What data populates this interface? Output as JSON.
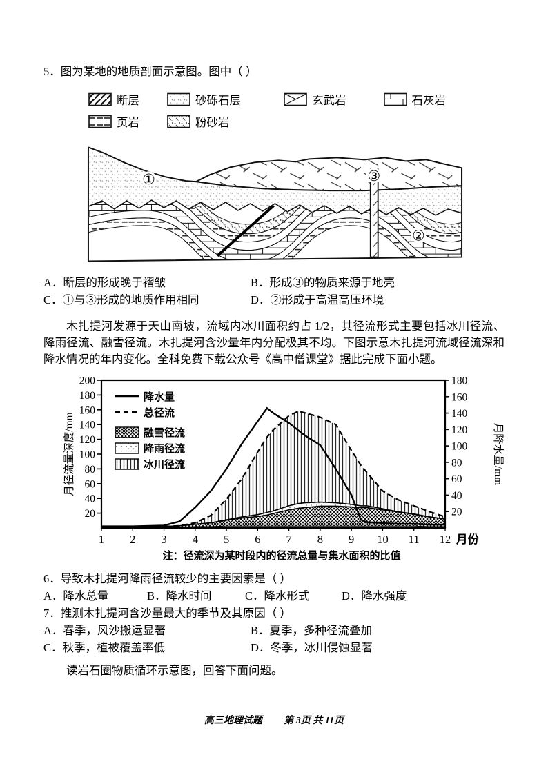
{
  "q5": {
    "text": "5．图为某地的地质剖面示意图。图中（  ）",
    "legend": [
      {
        "label": "断层"
      },
      {
        "label": "砂砾石层"
      },
      {
        "label": "玄武岩"
      },
      {
        "label": "石灰岩"
      },
      {
        "label": "页岩"
      },
      {
        "label": "粉砂岩"
      }
    ],
    "diagram": {
      "label_1": "①",
      "label_2": "②",
      "label_3": "③"
    },
    "options": [
      "A．断层的形成晚于褶皱",
      "B．形成③的物质来源于地壳",
      "C．①与③形成的地质作用相同",
      "D．②形成于高温高压环境"
    ]
  },
  "passage": "木扎提河发源于天山南坡，流域内冰川面积约占 1/2，其径流形式主要包括冰川径流、降雨径流、融雪径流。木扎提河含沙量年内分配极其不均。下图示意木扎提河流域径流深和降水情况的年内变化。全科免费下载公众号《高中僧课堂》据此完成下面小题。",
  "chart_data": {
    "type": "combo-line-stacked-area",
    "x": [
      1,
      2,
      3,
      3.5,
      4,
      4.5,
      5,
      5.5,
      6,
      6.3,
      6.5,
      7,
      7.3,
      7.5,
      8,
      8.5,
      9,
      9.3,
      9.5,
      10,
      10.5,
      11,
      11.5,
      12
    ],
    "series": [
      {
        "name": "降水量",
        "axis": "right",
        "style": "solid-line",
        "values": [
          2,
          2,
          3,
          8,
          25,
          45,
          72,
          103,
          130,
          146,
          140,
          128,
          119,
          113,
          101,
          72,
          40,
          10,
          7,
          6,
          5,
          5,
          4,
          4
        ]
      },
      {
        "name": "总径流",
        "axis": "left",
        "style": "dashed-line",
        "values": [
          2,
          2,
          2,
          3,
          7,
          17,
          39,
          67,
          103,
          123,
          133,
          152,
          158,
          156,
          150,
          140,
          105,
          85,
          75,
          50,
          38,
          30,
          22,
          15
        ]
      },
      {
        "name": "融雪径流",
        "axis": "left",
        "style": "area-crosshatch",
        "values": [
          1,
          1,
          1,
          2,
          3,
          5,
          8,
          11,
          13,
          15,
          17,
          22,
          24,
          25,
          27,
          27,
          26,
          25,
          25,
          22,
          19,
          16,
          13,
          10
        ]
      },
      {
        "name": "降雨径流",
        "axis": "left",
        "style": "area-dots",
        "values": [
          1,
          1,
          1,
          1,
          2,
          2,
          3,
          4,
          5,
          6,
          6,
          8,
          9,
          9,
          8,
          7,
          6,
          5,
          5,
          4,
          3,
          3,
          2,
          2
        ]
      },
      {
        "name": "冰川径流",
        "axis": "left",
        "style": "area-vlines",
        "values": [
          0,
          0,
          0,
          0,
          2,
          10,
          28,
          52,
          85,
          102,
          110,
          122,
          125,
          122,
          115,
          106,
          73,
          55,
          45,
          24,
          16,
          11,
          7,
          3
        ]
      }
    ],
    "left_axis": {
      "label": "月径流量深度/mm",
      "max": 200,
      "ticks": [
        20,
        40,
        60,
        80,
        100,
        120,
        140,
        160,
        180,
        200
      ]
    },
    "right_axis": {
      "label": "月降水量/mm",
      "max": 180,
      "ticks": [
        20,
        40,
        60,
        80,
        100,
        120,
        140,
        160,
        180
      ]
    },
    "x_axis": {
      "label": "月份",
      "ticks": [
        1,
        2,
        3,
        4,
        5,
        6,
        7,
        8,
        9,
        10,
        11,
        12
      ]
    },
    "legend": [
      {
        "label": "降水量",
        "type": "line-solid"
      },
      {
        "label": "总径流",
        "type": "line-dashed"
      },
      {
        "label": "融雪径流",
        "type": "swatch-crosshatch"
      },
      {
        "label": "降雨径流",
        "type": "swatch-dots"
      },
      {
        "label": "冰川径流",
        "type": "swatch-vlines"
      }
    ],
    "note": "注：径流深为某时段内的径流总量与集水面积的比值"
  },
  "q6": {
    "text": "6．导致木扎提河降雨径流较少的主要因素是（  ）",
    "options": [
      "A．降水总量",
      "B．降水时间",
      "C．降水形式",
      "D．降水强度"
    ]
  },
  "q7": {
    "text": "7．推测木扎提河含沙量最大的季节及其原因（  ）",
    "options": [
      "A．春季，风沙搬运显著",
      "B．夏季，多种径流叠加",
      "C．秋季，植被覆盖率低",
      "D．冬季，冰川侵蚀显著"
    ]
  },
  "next_prompt": "读岩石圈物质循环示意图，回答下面问题。",
  "footer": {
    "doc_title": "高三地理试题",
    "page_info": "第 3页 共 11页"
  }
}
